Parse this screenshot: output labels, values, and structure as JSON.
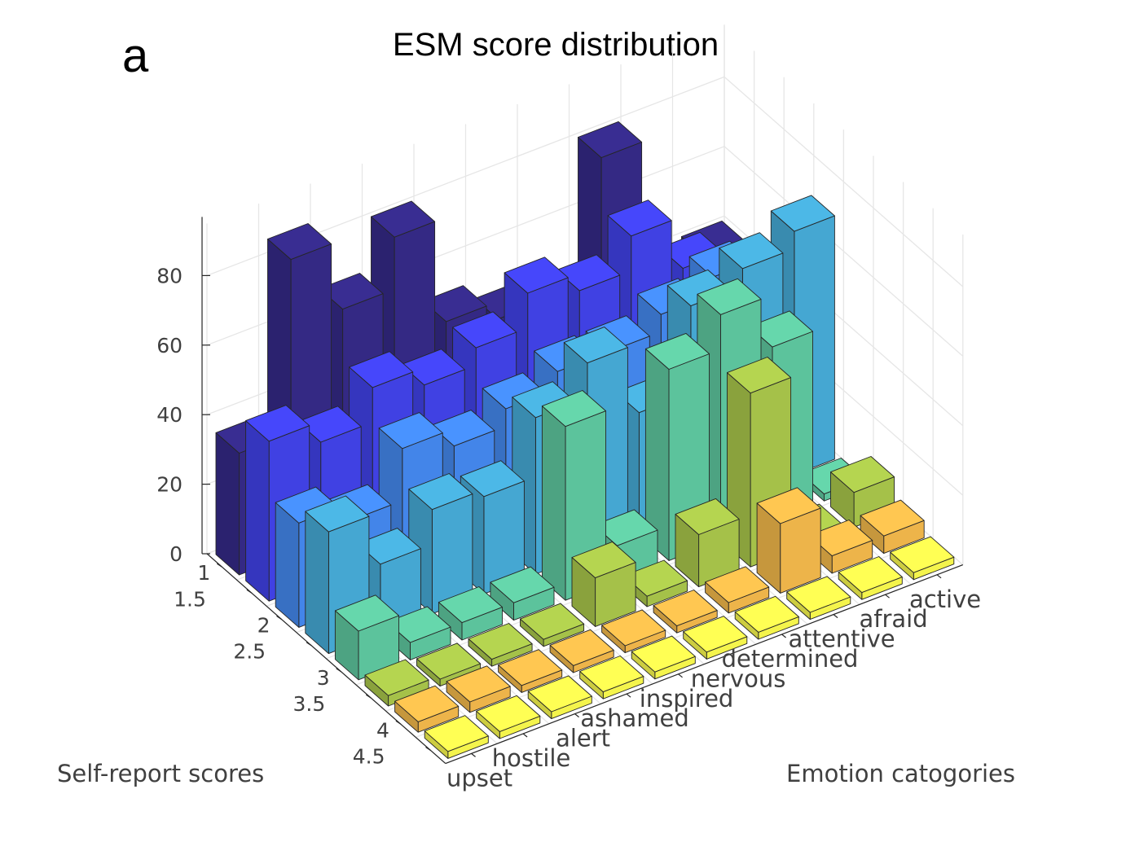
{
  "panel_label": "a",
  "chart_data": {
    "type": "bar3d",
    "title": "ESM score distribution",
    "xlabel": "Emotion catogories",
    "ylabel": "Self-report scores",
    "zlabel": "",
    "categories": [
      "upset",
      "hostile",
      "alert",
      "ashamed",
      "inspired",
      "nervous",
      "determined",
      "attentive",
      "afraid",
      "active"
    ],
    "scores": [
      "1",
      "1.5",
      "2",
      "2.5",
      "3",
      "3.5",
      "4",
      "4.5"
    ],
    "zticks": [
      "0",
      "20",
      "40",
      "60",
      "80"
    ],
    "zlim": [
      0,
      80
    ],
    "colormap": [
      "#352a87",
      "#4142e8",
      "#4488ee",
      "#46aad6",
      "#5ec79f",
      "#a8c54a",
      "#f2b84b",
      "#f9f94e"
    ],
    "grid": true,
    "values": [
      [
        35,
        85,
        65,
        80,
        50,
        45,
        30,
        80,
        20,
        40
      ],
      [
        46,
        40,
        50,
        45,
        50,
        60,
        55,
        65,
        50,
        25
      ],
      [
        30,
        25,
        40,
        35,
        40,
        45,
        45,
        50,
        55,
        40
      ],
      [
        35,
        20,
        30,
        28,
        45,
        55,
        35,
        60,
        65,
        70
      ],
      [
        14,
        5,
        5,
        5,
        50,
        10,
        55,
        65,
        50,
        2
      ],
      [
        3,
        2,
        2,
        2,
        14,
        3,
        15,
        50,
        2,
        10
      ],
      [
        3,
        3,
        2,
        2,
        2,
        2,
        3,
        20,
        5,
        5
      ],
      [
        2,
        2,
        2,
        2,
        2,
        2,
        2,
        2,
        2,
        2
      ]
    ]
  }
}
